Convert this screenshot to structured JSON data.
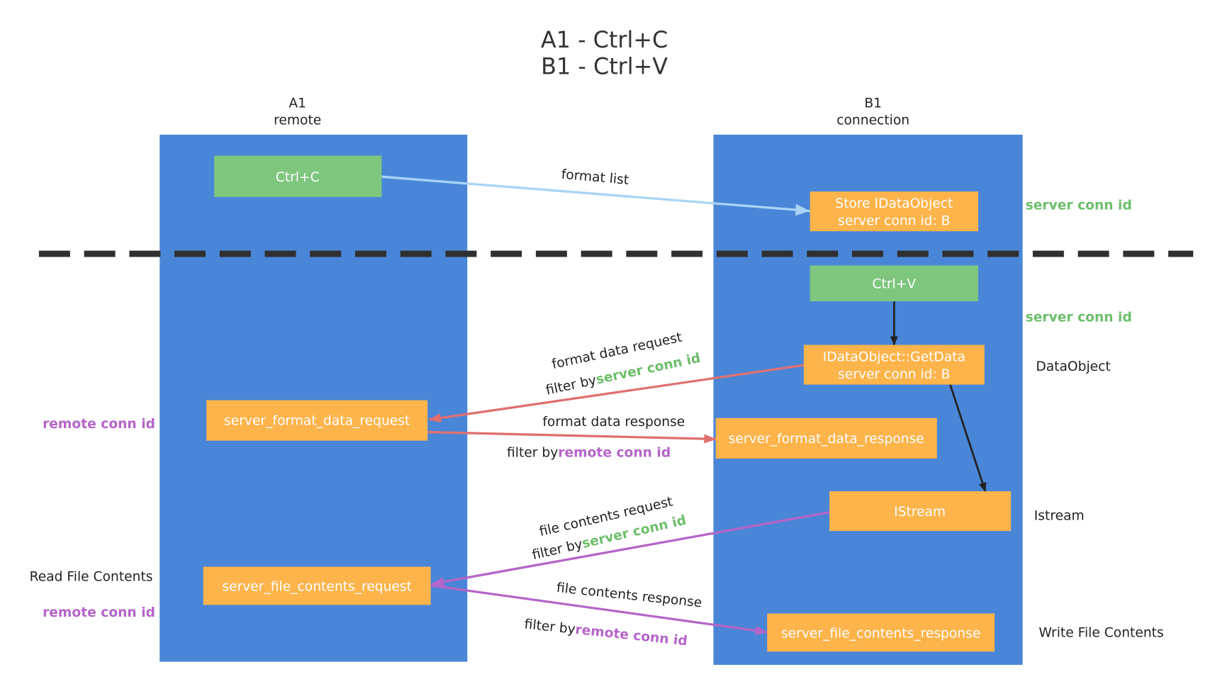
{
  "title": {
    "line1": "A1 - Ctrl+C",
    "line2": "B1 - Ctrl+V"
  },
  "lanes": {
    "left": {
      "name": "A1",
      "role": "remote"
    },
    "right": {
      "name": "B1",
      "role": "connection"
    }
  },
  "boxes": {
    "ctrl_c": "Ctrl+C",
    "store_line1": "Store IDataObject",
    "store_line2": "server conn id: B",
    "ctrl_v": "Ctrl+V",
    "getdata_line1": "IDataObject::GetData",
    "getdata_line2": "server conn id: B",
    "format_req": "server_format_data_request",
    "format_resp": "server_format_data_response",
    "istream": "IStream",
    "file_req": "server_file_contents_request",
    "file_resp": "server_file_contents_response"
  },
  "edges": {
    "format_list": "format list",
    "format_data_request": "format data request",
    "format_data_response": "format data response",
    "file_contents_request": "file contents request",
    "file_contents_response": "file contents response",
    "filter_by": "filter by",
    "server_conn_id": "server conn id",
    "remote_conn_id": "remote conn id"
  },
  "side": {
    "server_conn_id": "server conn id",
    "remote_conn_id": "remote conn id",
    "dataobject": "DataObject",
    "istream": "Istream",
    "write_file": "Write File Contents",
    "read_file": "Read File Contents"
  },
  "colors": {
    "lane": "#4a86d8",
    "green": "#7fc67f",
    "orange": "#fdb44b",
    "blue_arrow": "#a9d4f5",
    "red_arrow": "#e07070",
    "purple_arrow": "#b565c9"
  }
}
